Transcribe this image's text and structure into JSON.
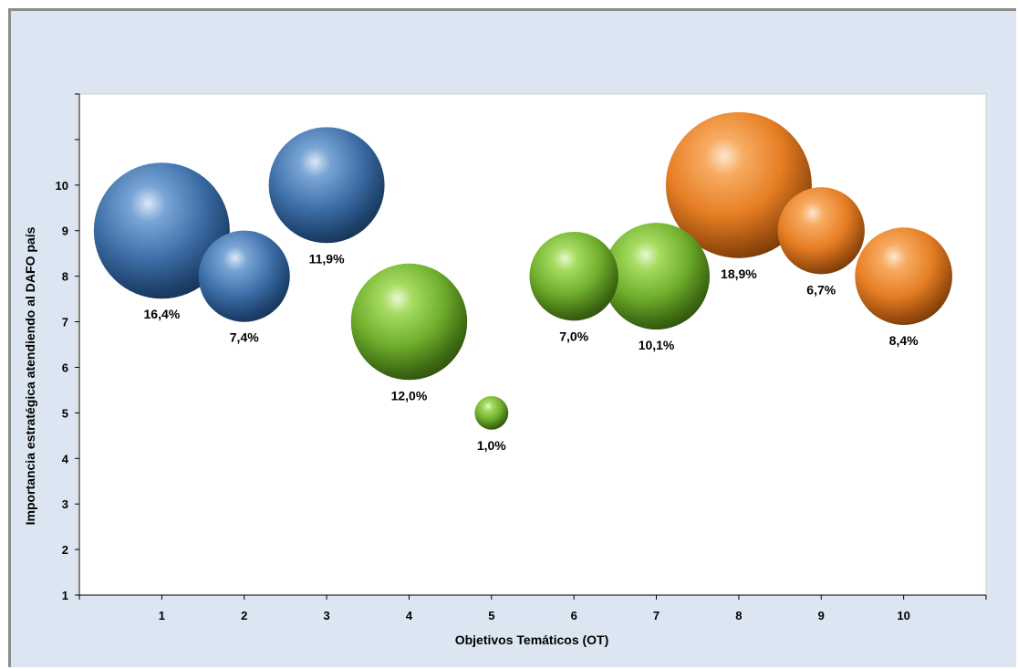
{
  "chart_data": {
    "type": "bubble",
    "xlabel": "Objetivos Temáticos (OT)",
    "ylabel": "Importancia estratégica atendiendo al DAFO país",
    "x_ticks": [
      "1",
      "2",
      "3",
      "4",
      "5",
      "6",
      "7",
      "8",
      "9",
      "10"
    ],
    "y_ticks": [
      "1",
      "2",
      "3",
      "4",
      "5",
      "6",
      "7",
      "8",
      "9",
      "10"
    ],
    "xlim": [
      0,
      11
    ],
    "ylim": [
      1,
      12
    ],
    "grid": false,
    "colors": {
      "blue": "#4f81bd",
      "green": "#7fbf3f",
      "orange": "#f79646"
    },
    "points": [
      {
        "x": 1,
        "y": 9,
        "size": 16.4,
        "label": "16,4%",
        "color": "blue"
      },
      {
        "x": 2,
        "y": 8,
        "size": 7.4,
        "label": "7,4%",
        "color": "blue"
      },
      {
        "x": 3,
        "y": 10,
        "size": 11.9,
        "label": "11,9%",
        "color": "blue"
      },
      {
        "x": 4,
        "y": 7,
        "size": 12.0,
        "label": "12,0%",
        "color": "green"
      },
      {
        "x": 5,
        "y": 5,
        "size": 1.0,
        "label": "1,0%",
        "color": "green"
      },
      {
        "x": 6,
        "y": 8,
        "size": 7.0,
        "label": "7,0%",
        "color": "green"
      },
      {
        "x": 7,
        "y": 8,
        "size": 10.1,
        "label": "10,1%",
        "color": "green"
      },
      {
        "x": 8,
        "y": 10,
        "size": 18.9,
        "label": "18,9%",
        "color": "orange"
      },
      {
        "x": 9,
        "y": 9,
        "size": 6.7,
        "label": "6,7%",
        "color": "orange"
      },
      {
        "x": 10,
        "y": 8,
        "size": 8.4,
        "label": "8,4%",
        "color": "orange"
      }
    ]
  }
}
